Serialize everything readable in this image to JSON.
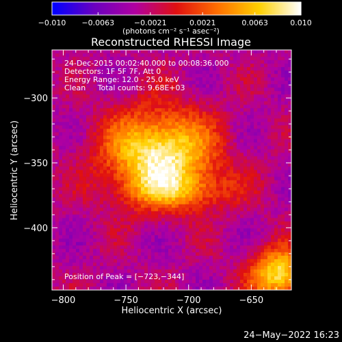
{
  "chart_data": {
    "type": "heatmap",
    "title": "Reconstructed RHESSI Image",
    "xlabel": "Heliocentric X (arcsec)",
    "ylabel": "Heliocentric Y (arcsec)",
    "xlim": [
      -809,
      -618
    ],
    "ylim": [
      -448,
      -263
    ],
    "x_ticks": [
      -800,
      -750,
      -700,
      -650
    ],
    "y_ticks": [
      -300,
      -350,
      -400
    ],
    "colorbar": {
      "range": [
        -0.01,
        0.01
      ],
      "ticks": [
        -0.01,
        -0.0063,
        -0.0021,
        0.0021,
        0.0063,
        0.01
      ],
      "tick_labels": [
        "−0.010",
        "−0.0063",
        "−0.0021",
        "0.0021",
        "0.0063",
        "0.010"
      ],
      "unit_label": "(photons cm⁻² s⁻¹ asec⁻²)",
      "colors": [
        "#0000ff",
        "#6a00c0",
        "#b000a0",
        "#e01010",
        "#ff7000",
        "#ffd000",
        "#ffffff"
      ]
    },
    "sources": [
      {
        "x": -723,
        "y": -344,
        "peak": 0.0095
      },
      {
        "x": -628,
        "y": -436,
        "peak": 0.008
      }
    ],
    "annotations": [
      "24-Dec-2015 00:02:40.000 to 00:08:36.000",
      "Detectors: 1F 5F 7F, Att 0",
      "Energy Range: 12.0 - 25.0 keV",
      "Clean     Total counts: 9.68E+03",
      "Position of Peak = [−723,−344]"
    ],
    "footer": "24−May−2022 16:23"
  }
}
